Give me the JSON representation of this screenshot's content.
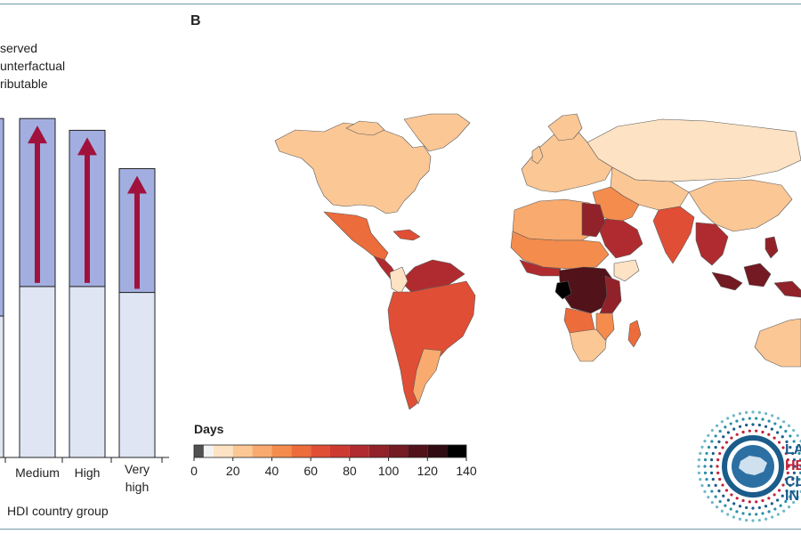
{
  "left_panel": {
    "legend": [
      "served",
      "unterfactual",
      "ributable"
    ],
    "axis_title": "HDI country group"
  },
  "right_panel": {
    "label": "B",
    "colorbar_title": "Days"
  },
  "logo": {
    "text_lines": [
      "LA",
      "HE",
      "CL",
      "IN"
    ]
  },
  "colors": {
    "counterfactual": "#dfe5f3",
    "attributable": "#a3aee0",
    "arrow": "#a0123c",
    "scale": [
      "#505050",
      "#f3f3f3",
      "#fde2c3",
      "#fbc795",
      "#f9aa6e",
      "#f48c4d",
      "#ec6c3b",
      "#e04e35",
      "#cc3a32",
      "#b02b2f",
      "#922229",
      "#731a22",
      "#52121a",
      "#300b11",
      "#000000"
    ]
  },
  "chart_data": {
    "type": "bar",
    "stacked": true,
    "categories": [
      "Medium",
      "High",
      "Very high"
    ],
    "series": [
      {
        "name": "Counterfactual",
        "values": [
          58,
          58,
          56
        ]
      },
      {
        "name": "Attributable",
        "values": [
          57,
          53,
          42
        ]
      }
    ],
    "partial_left_bar": {
      "counterfactual": 48,
      "total": 115
    },
    "ylim": [
      0,
      122
    ],
    "colorbar": {
      "label": "Days",
      "ticks": [
        0,
        20,
        40,
        60,
        80,
        100,
        120,
        140
      ],
      "range": [
        0,
        140
      ],
      "bins": [
        0,
        5,
        10,
        20,
        30,
        40,
        50,
        60,
        70,
        80,
        90,
        100,
        110,
        120,
        130,
        140
      ]
    }
  }
}
